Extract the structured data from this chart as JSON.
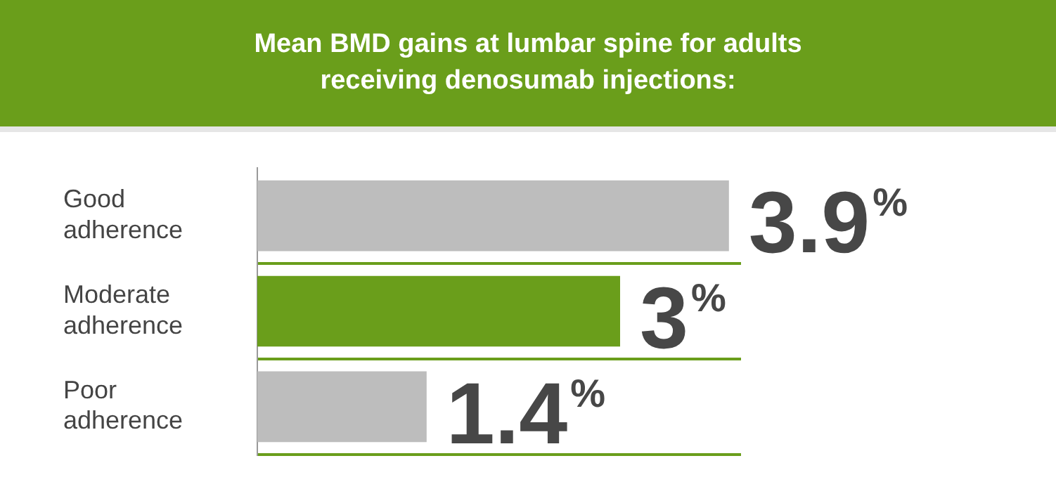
{
  "chart_data": {
    "type": "bar",
    "orientation": "horizontal",
    "title": "Mean BMD gains at lumbar spine for adults receiving denosumab injections:",
    "categories": [
      "Good adherence",
      "Moderate adherence",
      "Poor adherence"
    ],
    "values": [
      3.9,
      3,
      1.4
    ],
    "colors": [
      "#bdbdbd",
      "#6a9e1b",
      "#bdbdbd"
    ],
    "value_labels": [
      "3.9%",
      "3%",
      "1.4%"
    ],
    "tick_labels": "y",
    "grid": "y",
    "legend": false
  }
}
